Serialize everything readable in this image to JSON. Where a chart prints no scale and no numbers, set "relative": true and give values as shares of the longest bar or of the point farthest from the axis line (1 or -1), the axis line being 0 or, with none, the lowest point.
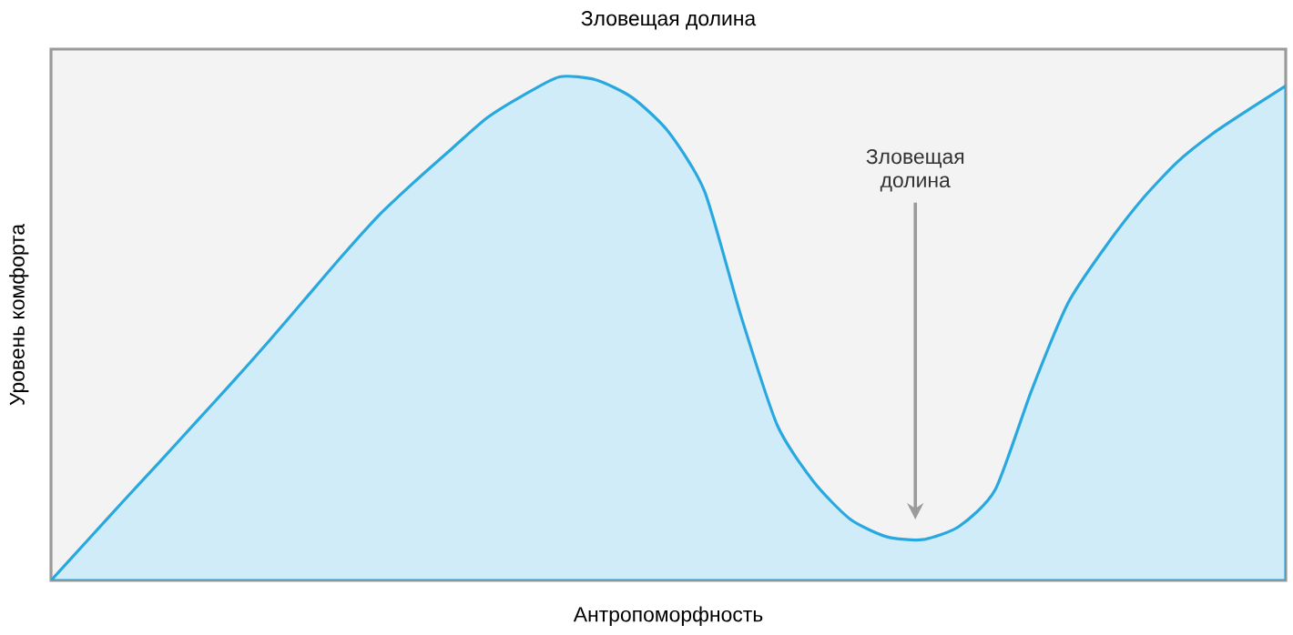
{
  "chart_data": {
    "type": "area",
    "title": "Зловещая долина",
    "xlabel": "Антропоморфность",
    "ylabel": "Уровень комфорта",
    "annotations": [
      "Зловещая долина"
    ],
    "relative": true,
    "color": "#29a8e0",
    "categories": [
      null,
      null,
      null,
      null,
      null,
      null,
      null,
      null,
      null,
      null,
      null,
      null,
      null,
      null,
      null,
      null,
      null,
      null,
      null,
      null,
      null,
      null,
      null,
      null,
      null,
      null,
      null,
      null,
      null,
      null,
      null,
      null,
      null,
      null,
      null
    ],
    "values": [
      0,
      0.079,
      0.158,
      0.236,
      0.315,
      0.394,
      0.475,
      0.559,
      0.643,
      0.723,
      0.791,
      0.855,
      0.918,
      0.963,
      1,
      0.994,
      0.959,
      0.891,
      0.772,
      0.525,
      0.308,
      0.196,
      0.122,
      0.087,
      0.081,
      0.107,
      0.18,
      0.377,
      0.55,
      0.659,
      0.753,
      0.83,
      0.888,
      0.936,
      0.982
    ]
  }
}
